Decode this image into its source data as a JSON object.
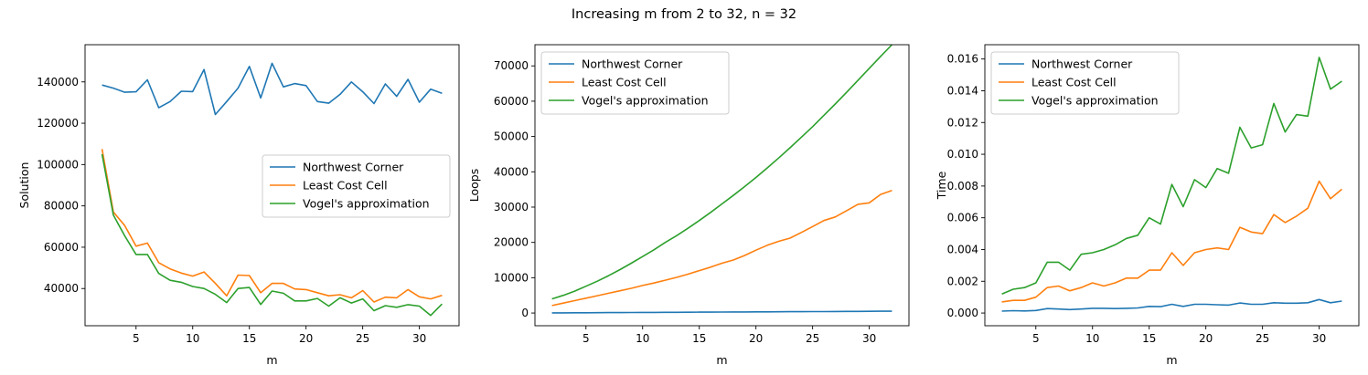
{
  "suptitle": "Increasing m from 2 to 32, n = 32",
  "colors": {
    "northwest": "#1f77b4",
    "leastcost": "#ff7f0e",
    "vogel": "#2ca02c"
  },
  "chart_data": [
    {
      "type": "line",
      "xlabel": "m",
      "ylabel": "Solution",
      "xlim": [
        0.5,
        33.5
      ],
      "ylim": [
        22000,
        158000
      ],
      "xticks": [
        5,
        10,
        15,
        20,
        25,
        30
      ],
      "yticks": [
        40000,
        60000,
        80000,
        100000,
        120000,
        140000
      ],
      "ytick_labels": [
        "40000",
        "60000",
        "80000",
        "100000",
        "120000",
        "140000"
      ],
      "legend_position": "center-right",
      "x": [
        2,
        3,
        4,
        5,
        6,
        7,
        8,
        9,
        10,
        11,
        12,
        13,
        14,
        15,
        16,
        17,
        18,
        19,
        20,
        21,
        22,
        23,
        24,
        25,
        26,
        27,
        28,
        29,
        30,
        31,
        32
      ],
      "series": [
        {
          "name": "Northwest Corner",
          "color": "#1f77b4",
          "values": [
            138500,
            137000,
            135000,
            135200,
            141000,
            127500,
            130500,
            135500,
            135300,
            146000,
            124200,
            130500,
            137000,
            147500,
            132200,
            149000,
            137600,
            139200,
            138200,
            130500,
            129700,
            134000,
            140000,
            135200,
            129500,
            139000,
            133000,
            141200,
            130200,
            136500,
            134500
          ]
        },
        {
          "name": "Least Cost Cell",
          "color": "#ff7f0e",
          "values": [
            107500,
            77000,
            70500,
            60500,
            62000,
            52500,
            49500,
            47500,
            46000,
            48000,
            42500,
            36500,
            46500,
            46300,
            38000,
            42500,
            42500,
            39800,
            39500,
            38000,
            36500,
            37000,
            35500,
            39000,
            33500,
            35800,
            35500,
            39500,
            36000,
            35000,
            36700
          ]
        },
        {
          "name": "Vogel's approximation",
          "color": "#2ca02c",
          "values": [
            105000,
            75500,
            65500,
            56500,
            56500,
            47300,
            44000,
            43000,
            41000,
            40000,
            37200,
            33200,
            40000,
            40500,
            32300,
            38800,
            37700,
            34000,
            34000,
            35200,
            31500,
            35500,
            33000,
            35000,
            29300,
            31700,
            30900,
            32200,
            31500,
            27000,
            32500
          ]
        }
      ]
    },
    {
      "type": "line",
      "xlabel": "m",
      "ylabel": "Loops",
      "xlim": [
        0.5,
        33.5
      ],
      "ylim": [
        -3600,
        76000
      ],
      "xticks": [
        5,
        10,
        15,
        20,
        25,
        30
      ],
      "yticks": [
        0,
        10000,
        20000,
        30000,
        40000,
        50000,
        60000,
        70000
      ],
      "ytick_labels": [
        "0",
        "10000",
        "20000",
        "30000",
        "40000",
        "50000",
        "60000",
        "70000"
      ],
      "legend_position": "top-left",
      "x": [
        2,
        3,
        4,
        5,
        6,
        7,
        8,
        9,
        10,
        11,
        12,
        13,
        14,
        15,
        16,
        17,
        18,
        19,
        20,
        21,
        22,
        23,
        24,
        25,
        26,
        27,
        28,
        29,
        30,
        31,
        32
      ],
      "series": [
        {
          "name": "Northwest Corner",
          "color": "#1f77b4",
          "values": [
            34,
            50,
            66,
            82,
            98,
            114,
            130,
            146,
            162,
            178,
            194,
            210,
            226,
            242,
            258,
            274,
            290,
            306,
            322,
            338,
            354,
            370,
            386,
            402,
            418,
            434,
            450,
            466,
            482,
            498,
            514
          ]
        },
        {
          "name": "Least Cost Cell",
          "color": "#ff7f0e",
          "values": [
            2100,
            2800,
            3500,
            4200,
            4900,
            5600,
            6300,
            7000,
            7800,
            8500,
            9300,
            10100,
            11000,
            12000,
            13000,
            14100,
            15000,
            16300,
            17800,
            19200,
            20300,
            21200,
            22800,
            24500,
            26200,
            27200,
            29000,
            30800,
            31200,
            33600,
            34700
          ]
        },
        {
          "name": "Vogel's approximation",
          "color": "#2ca02c",
          "values": [
            4000,
            5000,
            6200,
            7600,
            9000,
            10600,
            12300,
            14100,
            16000,
            17900,
            20000,
            21900,
            24000,
            26200,
            28500,
            30900,
            33300,
            35800,
            38400,
            41100,
            43900,
            46800,
            49800,
            52800,
            56000,
            59200,
            62500,
            65900,
            69300,
            72700,
            76000
          ]
        }
      ]
    },
    {
      "type": "line",
      "xlabel": "m",
      "ylabel": "Time",
      "xlim": [
        0.5,
        33.5
      ],
      "ylim": [
        -0.0008,
        0.0169
      ],
      "xticks": [
        5,
        10,
        15,
        20,
        25,
        30
      ],
      "yticks": [
        0,
        0.002,
        0.004,
        0.006,
        0.008,
        0.01,
        0.012,
        0.014,
        0.016
      ],
      "ytick_labels": [
        "0.000",
        "0.002",
        "0.004",
        "0.006",
        "0.008",
        "0.010",
        "0.012",
        "0.014",
        "0.016"
      ],
      "legend_position": "top-left",
      "x": [
        2,
        3,
        4,
        5,
        6,
        7,
        8,
        9,
        10,
        11,
        12,
        13,
        14,
        15,
        16,
        17,
        18,
        19,
        20,
        21,
        22,
        23,
        24,
        25,
        26,
        27,
        28,
        29,
        30,
        31,
        32
      ],
      "series": [
        {
          "name": "Northwest Corner",
          "color": "#1f77b4",
          "values": [
            0.00012,
            0.00015,
            0.00013,
            0.00016,
            0.00028,
            0.00025,
            0.00022,
            0.00025,
            0.0003,
            0.0003,
            0.00028,
            0.0003,
            0.00032,
            0.00042,
            0.0004,
            0.00055,
            0.00042,
            0.00055,
            0.00055,
            0.00052,
            0.0005,
            0.00063,
            0.00055,
            0.00055,
            0.00065,
            0.00062,
            0.00062,
            0.00065,
            0.00085,
            0.00065,
            0.00075
          ]
        },
        {
          "name": "Least Cost Cell",
          "color": "#ff7f0e",
          "values": [
            0.0007,
            0.0008,
            0.0008,
            0.001,
            0.0016,
            0.0017,
            0.0014,
            0.0016,
            0.0019,
            0.0017,
            0.0019,
            0.0022,
            0.0022,
            0.0027,
            0.0027,
            0.0038,
            0.003,
            0.0038,
            0.004,
            0.0041,
            0.004,
            0.0054,
            0.0051,
            0.005,
            0.0062,
            0.0057,
            0.0061,
            0.0066,
            0.0083,
            0.0072,
            0.0078
          ]
        },
        {
          "name": "Vogel's approximation",
          "color": "#2ca02c",
          "values": [
            0.0012,
            0.0015,
            0.0016,
            0.0019,
            0.0032,
            0.0032,
            0.0027,
            0.0037,
            0.0038,
            0.004,
            0.0043,
            0.0047,
            0.0049,
            0.006,
            0.0056,
            0.0081,
            0.0067,
            0.0084,
            0.0079,
            0.0091,
            0.0088,
            0.0117,
            0.0104,
            0.0106,
            0.0132,
            0.0114,
            0.0125,
            0.0124,
            0.0161,
            0.0141,
            0.0146
          ]
        }
      ]
    }
  ]
}
